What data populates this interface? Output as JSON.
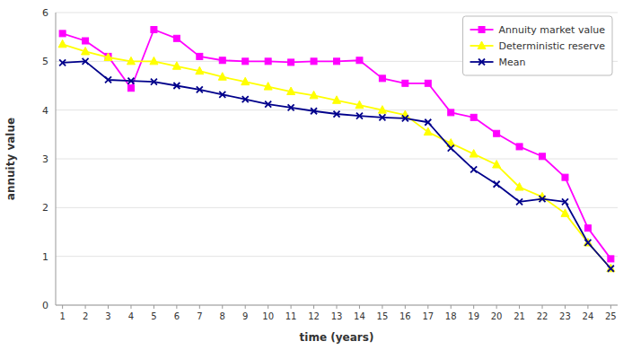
{
  "chart_data": {
    "type": "line",
    "x": [
      1,
      2,
      3,
      4,
      5,
      6,
      7,
      8,
      9,
      10,
      11,
      12,
      13,
      14,
      15,
      16,
      17,
      18,
      19,
      20,
      21,
      22,
      23,
      24,
      25
    ],
    "series": [
      {
        "name": "Annuity market value",
        "color": "#FF00FF",
        "marker": "square",
        "values": [
          5.57,
          5.42,
          5.1,
          4.45,
          5.65,
          5.47,
          5.1,
          5.02,
          5.0,
          5.0,
          4.98,
          5.0,
          5.0,
          5.02,
          4.65,
          4.55,
          4.55,
          3.95,
          3.85,
          3.52,
          3.25,
          3.05,
          2.62,
          1.58,
          0.95
        ]
      },
      {
        "name": "Deterministic reserve",
        "color": "#FFFF00",
        "marker": "triangle",
        "values": [
          5.35,
          5.2,
          5.08,
          5.0,
          5.0,
          4.9,
          4.8,
          4.68,
          4.58,
          4.48,
          4.38,
          4.3,
          4.2,
          4.1,
          4.0,
          3.9,
          3.55,
          3.32,
          3.1,
          2.88,
          2.42,
          2.22,
          1.88,
          1.28,
          0.75
        ]
      },
      {
        "name": "Mean",
        "color": "#00008B",
        "marker": "x",
        "values": [
          4.97,
          5.0,
          4.62,
          4.6,
          4.58,
          4.5,
          4.42,
          4.32,
          4.22,
          4.12,
          4.05,
          3.98,
          3.92,
          3.88,
          3.85,
          3.83,
          3.75,
          3.22,
          2.78,
          2.48,
          2.12,
          2.18,
          2.12,
          1.28,
          0.75
        ]
      }
    ],
    "xlabel": "time (years)",
    "ylabel": "annuity value",
    "xlim": [
      0.7,
      25.3
    ],
    "xticks": [
      1,
      2,
      3,
      4,
      5,
      6,
      7,
      8,
      9,
      10,
      11,
      12,
      13,
      14,
      15,
      16,
      17,
      18,
      19,
      20,
      21,
      22,
      23,
      24,
      25
    ],
    "ylim": [
      0,
      6
    ],
    "yticks": [
      0,
      1,
      2,
      3,
      4,
      5,
      6
    ],
    "grid": true,
    "legend": "upper right"
  }
}
